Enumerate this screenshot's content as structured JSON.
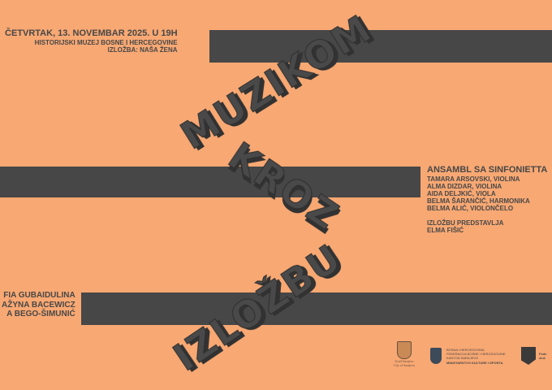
{
  "title": {
    "words": [
      "MUZIKOM",
      "KROZ",
      "IZLOŽBU"
    ]
  },
  "event": {
    "date_line": "ČETVRTAK, 13. NOVEMBAR 2025. U 19H",
    "venue": "HISTORIJSKI MUZEJ BOSNE I HERCEGOVINE",
    "exhibition": "IZLOŽBA: NAŠA ŽENA"
  },
  "ensemble": {
    "heading": "ANSAMBL SA SINFONIETTA",
    "members": [
      "TAMARA ARSOVSKI, VIOLINA",
      "ALMA DIZDAR, VIOLINA",
      "AIDA DELJKIĆ, VIOLA",
      "BELMA ŠARANČIĆ, HARMONIKA",
      "BELMA ALIĆ, VIOLONČELO"
    ],
    "presenter_label": "IZLOŽBU PREDSTAVLJA",
    "presenter": "ELMA FIŠIĆ"
  },
  "composers": [
    "FIA GUBAIDULINA",
    "AŽYNA BACEWICZ",
    "A BEGO-ŠIMUNIĆ"
  ],
  "logos": {
    "sarajevo": [
      "Grad Sarajevo",
      "City of Sarajevo"
    ],
    "ministry": [
      "BOSNA I HERCEGOVINA",
      "FEDERACIJA BOSNE I HERCEGOVINE",
      "KANTON SARAJEVO",
      "MINISTARSTVO KULTURE I SPORTA"
    ],
    "federal": [
      "Fede",
      "služ"
    ]
  },
  "colors": {
    "background": "#F8A873",
    "ink": "#474747"
  }
}
